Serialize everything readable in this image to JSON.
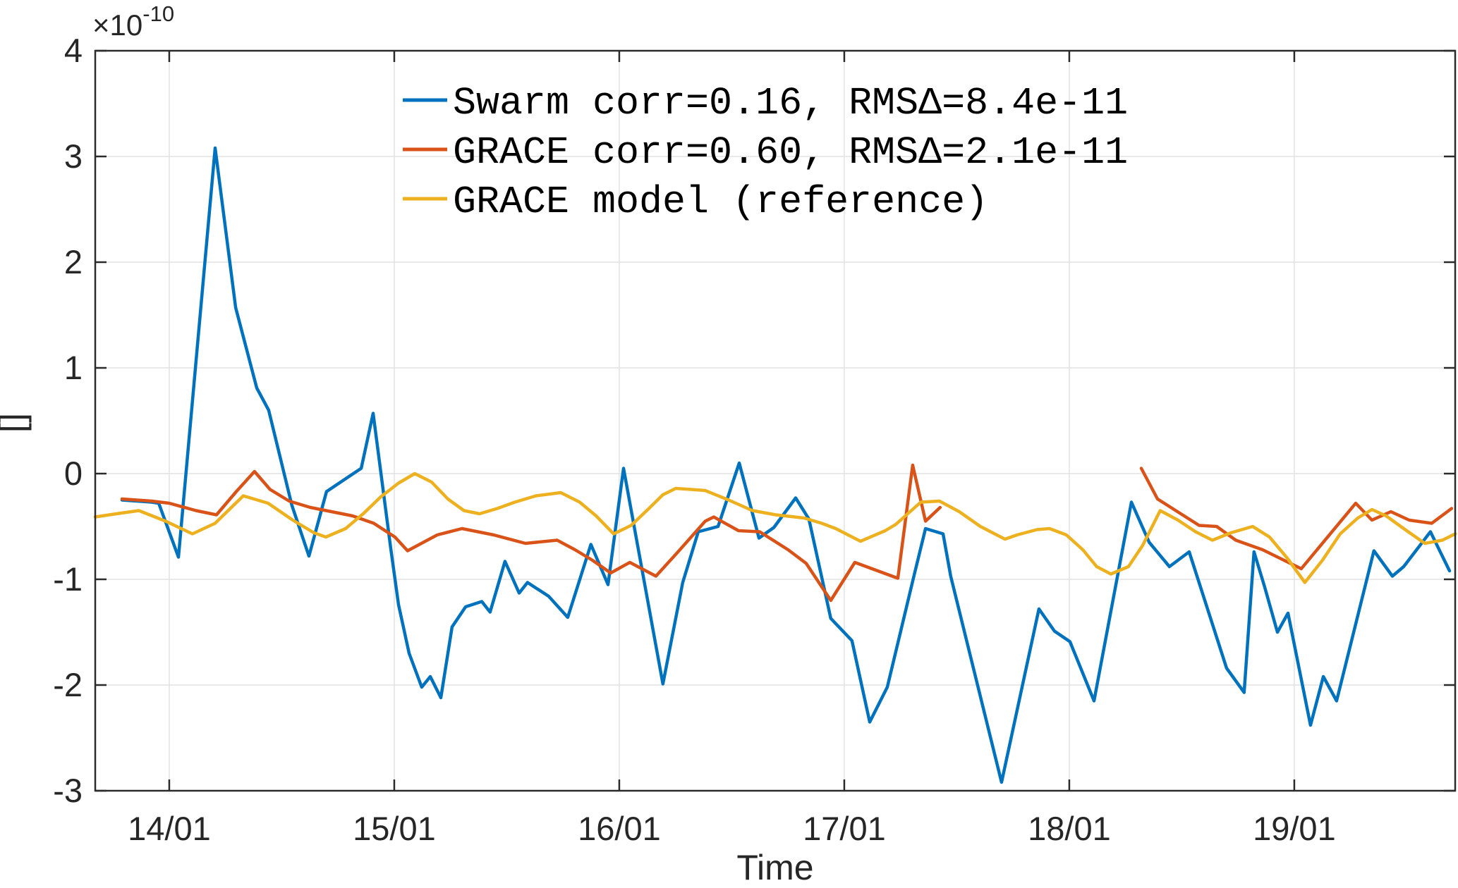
{
  "chart_data": {
    "type": "line",
    "title": "",
    "xlabel": "Time",
    "ylabel": "[]",
    "y_exponent_base": "×10",
    "y_exponent_power": "-10",
    "y_scale_factor": "1e-10",
    "x_tick_labels": [
      "14/01",
      "15/01",
      "16/01",
      "17/01",
      "18/01",
      "19/01"
    ],
    "x_tick_days": [
      0,
      1,
      2,
      3,
      4,
      5
    ],
    "xlim_days": [
      -0.329,
      5.715
    ],
    "ylim": [
      -3,
      4
    ],
    "y_ticks": [
      4,
      3,
      2,
      1,
      0,
      -1,
      -2,
      -3
    ],
    "y_tick_labels": [
      "4",
      "3",
      "2",
      "1",
      "0",
      "-1",
      "-2",
      "-3"
    ],
    "grid": true,
    "legend_location": "north-inside",
    "series": [
      {
        "label": "Swarm corr=0.16, RMSΔ=8.4e-11",
        "color": "#0072BD",
        "segments": [
          [
            [
              -0.21,
              -0.25
            ],
            [
              -0.078,
              -0.27
            ],
            [
              -0.047,
              -0.28
            ],
            [
              0.041,
              -0.79
            ],
            [
              0.204,
              3.08
            ],
            [
              0.295,
              1.57
            ],
            [
              0.389,
              0.81
            ],
            [
              0.442,
              0.6
            ],
            [
              0.545,
              -0.3
            ],
            [
              0.621,
              -0.78
            ],
            [
              0.699,
              -0.17
            ],
            [
              0.853,
              0.05
            ],
            [
              0.906,
              0.57
            ],
            [
              0.984,
              -0.7
            ],
            [
              1.019,
              -1.24
            ],
            [
              1.066,
              -1.7
            ],
            [
              1.122,
              -2.02
            ],
            [
              1.16,
              -1.92
            ],
            [
              1.207,
              -2.12
            ],
            [
              1.257,
              -1.45
            ],
            [
              1.317,
              -1.26
            ],
            [
              1.389,
              -1.21
            ],
            [
              1.426,
              -1.31
            ],
            [
              1.492,
              -0.83
            ],
            [
              1.555,
              -1.13
            ],
            [
              1.592,
              -1.03
            ],
            [
              1.686,
              -1.16
            ],
            [
              1.771,
              -1.36
            ],
            [
              1.874,
              -0.67
            ],
            [
              1.95,
              -1.05
            ],
            [
              2.019,
              0.05
            ],
            [
              2.194,
              -1.99
            ],
            [
              2.282,
              -1.03
            ],
            [
              2.351,
              -0.55
            ],
            [
              2.439,
              -0.5
            ],
            [
              2.533,
              0.1
            ],
            [
              2.621,
              -0.61
            ],
            [
              2.687,
              -0.51
            ],
            [
              2.784,
              -0.23
            ],
            [
              2.843,
              -0.43
            ],
            [
              2.94,
              -1.37
            ],
            [
              3.034,
              -1.58
            ],
            [
              3.113,
              -2.35
            ],
            [
              3.191,
              -2.02
            ],
            [
              3.307,
              -0.99
            ],
            [
              3.361,
              -0.52
            ],
            [
              3.439,
              -0.57
            ],
            [
              3.473,
              -0.97
            ],
            [
              3.699,
              -2.92
            ],
            [
              3.865,
              -1.28
            ],
            [
              3.934,
              -1.49
            ],
            [
              4.003,
              -1.59
            ],
            [
              4.11,
              -2.15
            ],
            [
              4.276,
              -0.27
            ],
            [
              4.355,
              -0.65
            ],
            [
              4.445,
              -0.88
            ],
            [
              4.533,
              -0.74
            ],
            [
              4.699,
              -1.84
            ],
            [
              4.777,
              -2.07
            ],
            [
              4.821,
              -0.74
            ],
            [
              4.868,
              -1.07
            ],
            [
              4.925,
              -1.5
            ],
            [
              4.972,
              -1.32
            ],
            [
              5.072,
              -2.38
            ],
            [
              5.129,
              -1.92
            ],
            [
              5.188,
              -2.15
            ],
            [
              5.354,
              -0.73
            ],
            [
              5.436,
              -0.97
            ],
            [
              5.486,
              -0.88
            ],
            [
              5.605,
              -0.55
            ],
            [
              5.69,
              -0.92
            ]
          ]
        ]
      },
      {
        "label": "GRACE corr=0.60, RMSΔ=2.1e-11",
        "color": "#D95319",
        "segments": [
          [
            [
              -0.21,
              -0.24
            ],
            [
              -0.078,
              -0.26
            ],
            [
              0.0,
              -0.28
            ],
            [
              0.119,
              -0.35
            ],
            [
              0.21,
              -0.39
            ],
            [
              0.298,
              -0.17
            ],
            [
              0.379,
              0.02
            ],
            [
              0.448,
              -0.15
            ],
            [
              0.533,
              -0.26
            ],
            [
              0.627,
              -0.32
            ],
            [
              0.721,
              -0.36
            ],
            [
              0.815,
              -0.4
            ],
            [
              0.909,
              -0.47
            ],
            [
              1.003,
              -0.6
            ],
            [
              1.059,
              -0.73
            ],
            [
              1.191,
              -0.58
            ],
            [
              1.301,
              -0.52
            ],
            [
              1.442,
              -0.58
            ],
            [
              1.583,
              -0.66
            ],
            [
              1.724,
              -0.63
            ],
            [
              1.803,
              -0.72
            ],
            [
              1.881,
              -0.82
            ],
            [
              1.962,
              -0.94
            ],
            [
              2.047,
              -0.84
            ],
            [
              2.163,
              -0.97
            ],
            [
              2.257,
              -0.75
            ],
            [
              2.382,
              -0.45
            ],
            [
              2.42,
              -0.41
            ],
            [
              2.53,
              -0.54
            ],
            [
              2.624,
              -0.55
            ],
            [
              2.75,
              -0.72
            ],
            [
              2.831,
              -0.85
            ],
            [
              2.94,
              -1.2
            ],
            [
              3.047,
              -0.84
            ],
            [
              3.238,
              -0.99
            ],
            [
              3.304,
              0.08
            ],
            [
              3.361,
              -0.45
            ],
            [
              3.426,
              -0.32
            ]
          ],
          [
            [
              4.32,
              0.05
            ],
            [
              4.392,
              -0.24
            ],
            [
              4.577,
              -0.49
            ],
            [
              4.655,
              -0.5
            ],
            [
              4.74,
              -0.63
            ],
            [
              4.859,
              -0.72
            ],
            [
              5.031,
              -0.9
            ],
            [
              5.273,
              -0.28
            ],
            [
              5.345,
              -0.44
            ],
            [
              5.429,
              -0.36
            ],
            [
              5.511,
              -0.44
            ],
            [
              5.611,
              -0.47
            ],
            [
              5.699,
              -0.33
            ]
          ]
        ]
      },
      {
        "label": "GRACE model (reference)",
        "color": "#EDB120",
        "segments": [
          [
            [
              -0.329,
              -0.41
            ],
            [
              -0.235,
              -0.38
            ],
            [
              -0.135,
              -0.35
            ],
            [
              -0.016,
              -0.45
            ],
            [
              0.103,
              -0.57
            ],
            [
              0.204,
              -0.47
            ],
            [
              0.329,
              -0.21
            ],
            [
              0.439,
              -0.28
            ],
            [
              0.549,
              -0.44
            ],
            [
              0.643,
              -0.56
            ],
            [
              0.696,
              -0.6
            ],
            [
              0.784,
              -0.52
            ],
            [
              0.862,
              -0.38
            ],
            [
              0.94,
              -0.22
            ],
            [
              1.019,
              -0.09
            ],
            [
              1.091,
              0.0
            ],
            [
              1.166,
              -0.08
            ],
            [
              1.238,
              -0.24
            ],
            [
              1.31,
              -0.35
            ],
            [
              1.379,
              -0.38
            ],
            [
              1.458,
              -0.33
            ],
            [
              1.536,
              -0.27
            ],
            [
              1.63,
              -0.21
            ],
            [
              1.74,
              -0.18
            ],
            [
              1.824,
              -0.27
            ],
            [
              1.897,
              -0.4
            ],
            [
              1.975,
              -0.57
            ],
            [
              2.053,
              -0.49
            ],
            [
              2.132,
              -0.33
            ],
            [
              2.194,
              -0.2
            ],
            [
              2.251,
              -0.14
            ],
            [
              2.32,
              -0.15
            ],
            [
              2.382,
              -0.16
            ],
            [
              2.486,
              -0.25
            ],
            [
              2.592,
              -0.35
            ],
            [
              2.696,
              -0.39
            ],
            [
              2.821,
              -0.42
            ],
            [
              2.9,
              -0.47
            ],
            [
              2.962,
              -0.52
            ],
            [
              3.072,
              -0.64
            ],
            [
              3.182,
              -0.54
            ],
            [
              3.229,
              -0.48
            ],
            [
              3.34,
              -0.27
            ],
            [
              3.423,
              -0.26
            ],
            [
              3.511,
              -0.36
            ],
            [
              3.605,
              -0.5
            ],
            [
              3.714,
              -0.62
            ],
            [
              3.768,
              -0.58
            ],
            [
              3.856,
              -0.53
            ],
            [
              3.912,
              -0.52
            ],
            [
              3.987,
              -0.58
            ],
            [
              4.06,
              -0.72
            ],
            [
              4.122,
              -0.88
            ],
            [
              4.185,
              -0.95
            ],
            [
              4.263,
              -0.88
            ],
            [
              4.326,
              -0.68
            ],
            [
              4.404,
              -0.35
            ],
            [
              4.483,
              -0.44
            ],
            [
              4.561,
              -0.55
            ],
            [
              4.636,
              -0.63
            ],
            [
              4.718,
              -0.56
            ],
            [
              4.815,
              -0.5
            ],
            [
              4.89,
              -0.6
            ],
            [
              4.969,
              -0.8
            ],
            [
              5.047,
              -1.03
            ],
            [
              5.125,
              -0.82
            ],
            [
              5.204,
              -0.57
            ],
            [
              5.282,
              -0.42
            ],
            [
              5.345,
              -0.34
            ],
            [
              5.408,
              -0.4
            ],
            [
              5.486,
              -0.52
            ],
            [
              5.58,
              -0.66
            ],
            [
              5.658,
              -0.63
            ],
            [
              5.715,
              -0.57
            ]
          ]
        ]
      }
    ]
  }
}
